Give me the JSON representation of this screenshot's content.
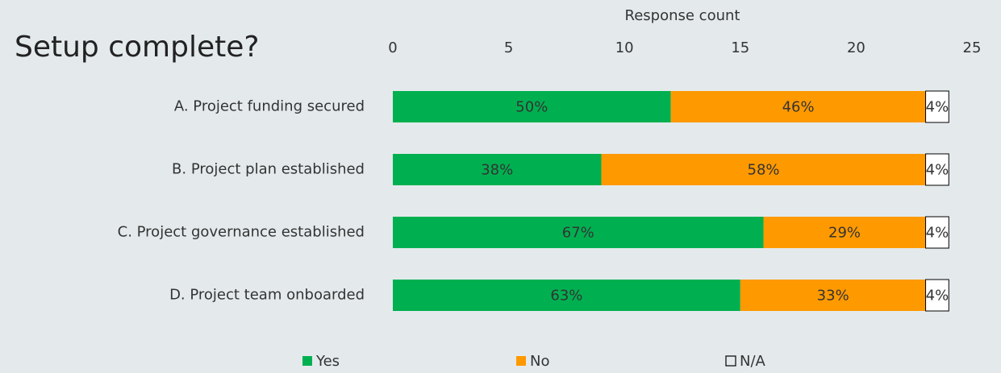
{
  "chart_data": {
    "type": "bar",
    "orientation": "horizontal",
    "stacked": true,
    "title": "Setup complete?",
    "x_label": "Response count",
    "categories": [
      "A. Project funding secured",
      "B. Project plan established",
      "C. Project governance established",
      "D. Project team onboarded"
    ],
    "series": [
      {
        "name": "Yes",
        "color": "#00b050",
        "values": [
          12,
          9,
          16,
          15
        ],
        "value_labels": [
          "50%",
          "38%",
          "67%",
          "63%"
        ]
      },
      {
        "name": "No",
        "color": "#ff9900",
        "values": [
          11,
          14,
          7,
          8
        ],
        "value_labels": [
          "46%",
          "58%",
          "29%",
          "33%"
        ]
      },
      {
        "name": "N/A",
        "color": "#ffffff",
        "values": [
          1,
          1,
          1,
          1
        ],
        "value_labels": [
          "4%",
          "4%",
          "4%",
          "4%"
        ]
      }
    ],
    "xlim": [
      0,
      25
    ],
    "xticks": [
      0,
      5,
      10,
      15,
      20,
      25
    ],
    "grid": false,
    "legend": "bottom"
  }
}
